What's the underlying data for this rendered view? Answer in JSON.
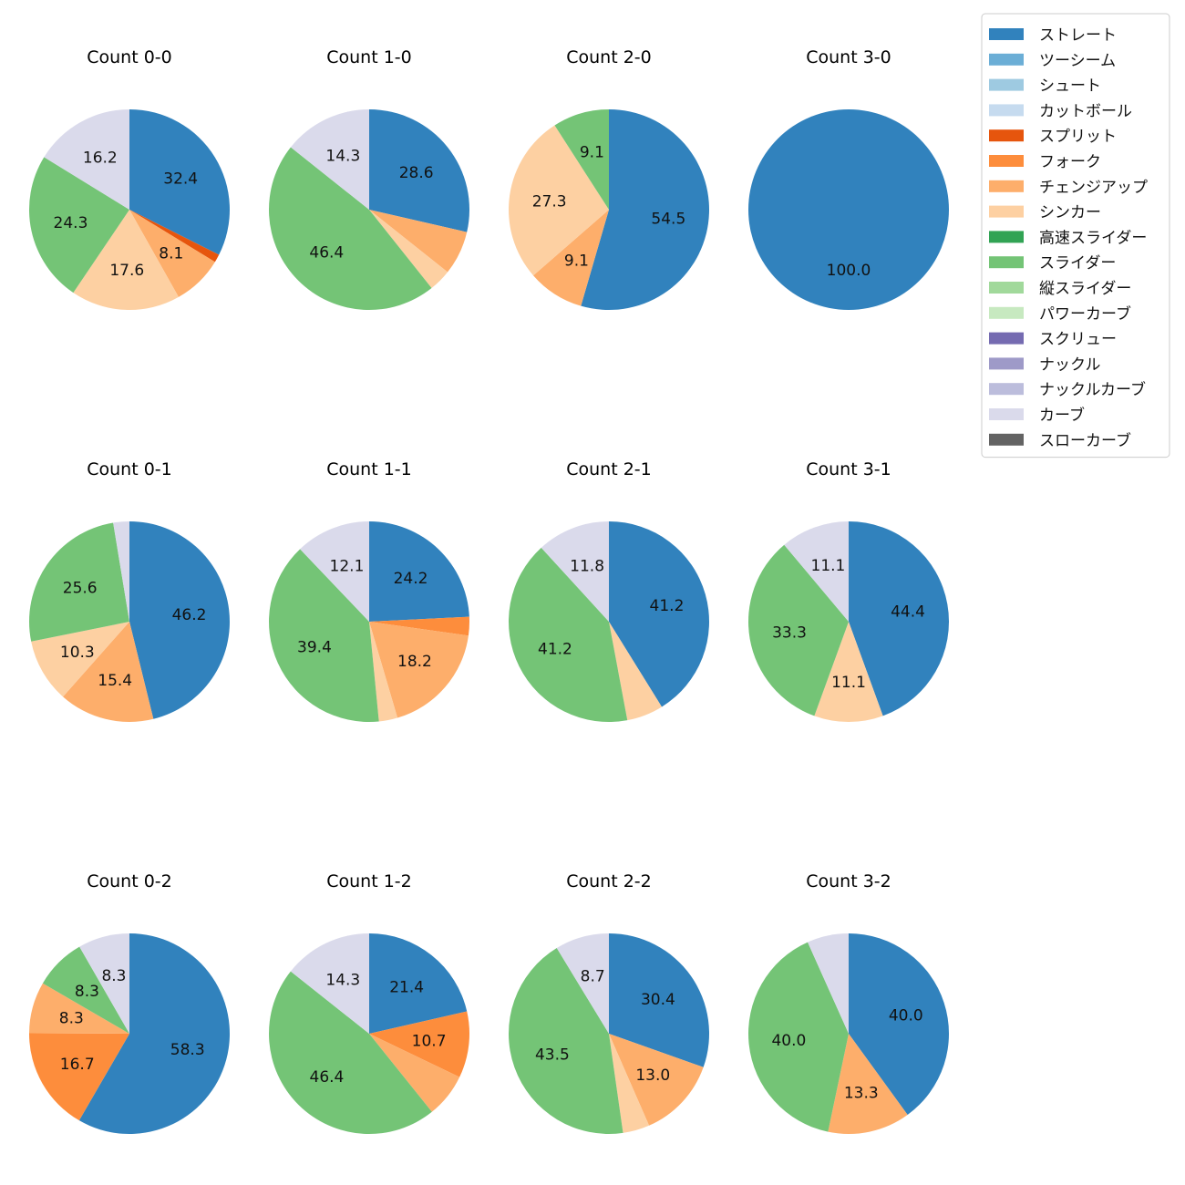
{
  "legend": {
    "placement": "top-right",
    "entries": [
      {
        "name": "ストレート",
        "color": "#3182bd"
      },
      {
        "name": "ツーシーム",
        "color": "#6baed6"
      },
      {
        "name": "シュート",
        "color": "#9ecae1"
      },
      {
        "name": "カットボール",
        "color": "#c6dbef"
      },
      {
        "name": "スプリット",
        "color": "#e6550d"
      },
      {
        "name": "フォーク",
        "color": "#fd8d3c"
      },
      {
        "name": "チェンジアップ",
        "color": "#fdae6b"
      },
      {
        "name": "シンカー",
        "color": "#fdd0a2"
      },
      {
        "name": "高速スライダー",
        "color": "#31a354"
      },
      {
        "name": "スライダー",
        "color": "#74c476"
      },
      {
        "name": "縦スライダー",
        "color": "#a1d99b"
      },
      {
        "name": "パワーカーブ",
        "color": "#c7e9c0"
      },
      {
        "name": "スクリュー",
        "color": "#756bb1"
      },
      {
        "name": "ナックル",
        "color": "#9e9ac8"
      },
      {
        "name": "ナックルカーブ",
        "color": "#bcbddc"
      },
      {
        "name": "カーブ",
        "color": "#dadaeb"
      },
      {
        "name": "スローカーブ",
        "color": "#636363"
      }
    ]
  },
  "chart_data": [
    {
      "type": "pie",
      "title": "Count 0-0",
      "slices": [
        {
          "category": "ストレート",
          "value": 32.4,
          "label": "32.4"
        },
        {
          "category": "スプリット",
          "value": 1.3,
          "label": ""
        },
        {
          "category": "チェンジアップ",
          "value": 8.1,
          "label": "8.1"
        },
        {
          "category": "シンカー",
          "value": 17.6,
          "label": "17.6"
        },
        {
          "category": "スライダー",
          "value": 24.3,
          "label": "24.3"
        },
        {
          "category": "カーブ",
          "value": 16.2,
          "label": "16.2"
        }
      ]
    },
    {
      "type": "pie",
      "title": "Count 1-0",
      "slices": [
        {
          "category": "ストレート",
          "value": 28.6,
          "label": "28.6"
        },
        {
          "category": "チェンジアップ",
          "value": 7.1,
          "label": ""
        },
        {
          "category": "シンカー",
          "value": 3.6,
          "label": ""
        },
        {
          "category": "スライダー",
          "value": 46.4,
          "label": "46.4"
        },
        {
          "category": "カーブ",
          "value": 14.3,
          "label": "14.3"
        }
      ]
    },
    {
      "type": "pie",
      "title": "Count 2-0",
      "slices": [
        {
          "category": "ストレート",
          "value": 54.5,
          "label": "54.5"
        },
        {
          "category": "チェンジアップ",
          "value": 9.1,
          "label": "9.1"
        },
        {
          "category": "シンカー",
          "value": 27.3,
          "label": "27.3"
        },
        {
          "category": "スライダー",
          "value": 9.1,
          "label": "9.1"
        }
      ]
    },
    {
      "type": "pie",
      "title": "Count 3-0",
      "slices": [
        {
          "category": "ストレート",
          "value": 100.0,
          "label": "100.0"
        }
      ]
    },
    {
      "type": "pie",
      "title": "Count 0-1",
      "slices": [
        {
          "category": "ストレート",
          "value": 46.2,
          "label": "46.2"
        },
        {
          "category": "チェンジアップ",
          "value": 15.4,
          "label": "15.4"
        },
        {
          "category": "シンカー",
          "value": 10.3,
          "label": "10.3"
        },
        {
          "category": "スライダー",
          "value": 25.6,
          "label": "25.6"
        },
        {
          "category": "カーブ",
          "value": 2.6,
          "label": ""
        }
      ]
    },
    {
      "type": "pie",
      "title": "Count 1-1",
      "slices": [
        {
          "category": "ストレート",
          "value": 24.2,
          "label": "24.2"
        },
        {
          "category": "フォーク",
          "value": 3.0,
          "label": ""
        },
        {
          "category": "チェンジアップ",
          "value": 18.2,
          "label": "18.2"
        },
        {
          "category": "シンカー",
          "value": 3.0,
          "label": ""
        },
        {
          "category": "スライダー",
          "value": 39.4,
          "label": "39.4"
        },
        {
          "category": "カーブ",
          "value": 12.1,
          "label": "12.1"
        }
      ]
    },
    {
      "type": "pie",
      "title": "Count 2-1",
      "slices": [
        {
          "category": "ストレート",
          "value": 41.2,
          "label": "41.2"
        },
        {
          "category": "シンカー",
          "value": 5.9,
          "label": ""
        },
        {
          "category": "スライダー",
          "value": 41.2,
          "label": "41.2"
        },
        {
          "category": "カーブ",
          "value": 11.8,
          "label": "11.8"
        }
      ]
    },
    {
      "type": "pie",
      "title": "Count 3-1",
      "slices": [
        {
          "category": "ストレート",
          "value": 44.4,
          "label": "44.4"
        },
        {
          "category": "シンカー",
          "value": 11.1,
          "label": "11.1"
        },
        {
          "category": "スライダー",
          "value": 33.3,
          "label": "33.3"
        },
        {
          "category": "カーブ",
          "value": 11.1,
          "label": "11.1"
        }
      ]
    },
    {
      "type": "pie",
      "title": "Count 0-2",
      "slices": [
        {
          "category": "ストレート",
          "value": 58.3,
          "label": "58.3"
        },
        {
          "category": "フォーク",
          "value": 16.7,
          "label": "16.7"
        },
        {
          "category": "チェンジアップ",
          "value": 8.3,
          "label": "8.3"
        },
        {
          "category": "スライダー",
          "value": 8.3,
          "label": "8.3"
        },
        {
          "category": "カーブ",
          "value": 8.3,
          "label": "8.3"
        }
      ]
    },
    {
      "type": "pie",
      "title": "Count 1-2",
      "slices": [
        {
          "category": "ストレート",
          "value": 21.4,
          "label": "21.4"
        },
        {
          "category": "フォーク",
          "value": 10.7,
          "label": "10.7"
        },
        {
          "category": "チェンジアップ",
          "value": 7.1,
          "label": ""
        },
        {
          "category": "スライダー",
          "value": 46.4,
          "label": "46.4"
        },
        {
          "category": "カーブ",
          "value": 14.3,
          "label": "14.3"
        }
      ]
    },
    {
      "type": "pie",
      "title": "Count 2-2",
      "slices": [
        {
          "category": "ストレート",
          "value": 30.4,
          "label": "30.4"
        },
        {
          "category": "チェンジアップ",
          "value": 13.0,
          "label": "13.0"
        },
        {
          "category": "シンカー",
          "value": 4.3,
          "label": ""
        },
        {
          "category": "スライダー",
          "value": 43.5,
          "label": "43.5"
        },
        {
          "category": "カーブ",
          "value": 8.7,
          "label": "8.7"
        }
      ]
    },
    {
      "type": "pie",
      "title": "Count 3-2",
      "slices": [
        {
          "category": "ストレート",
          "value": 40.0,
          "label": "40.0"
        },
        {
          "category": "チェンジアップ",
          "value": 13.3,
          "label": "13.3"
        },
        {
          "category": "スライダー",
          "value": 40.0,
          "label": "40.0"
        },
        {
          "category": "カーブ",
          "value": 6.7,
          "label": ""
        }
      ]
    }
  ]
}
